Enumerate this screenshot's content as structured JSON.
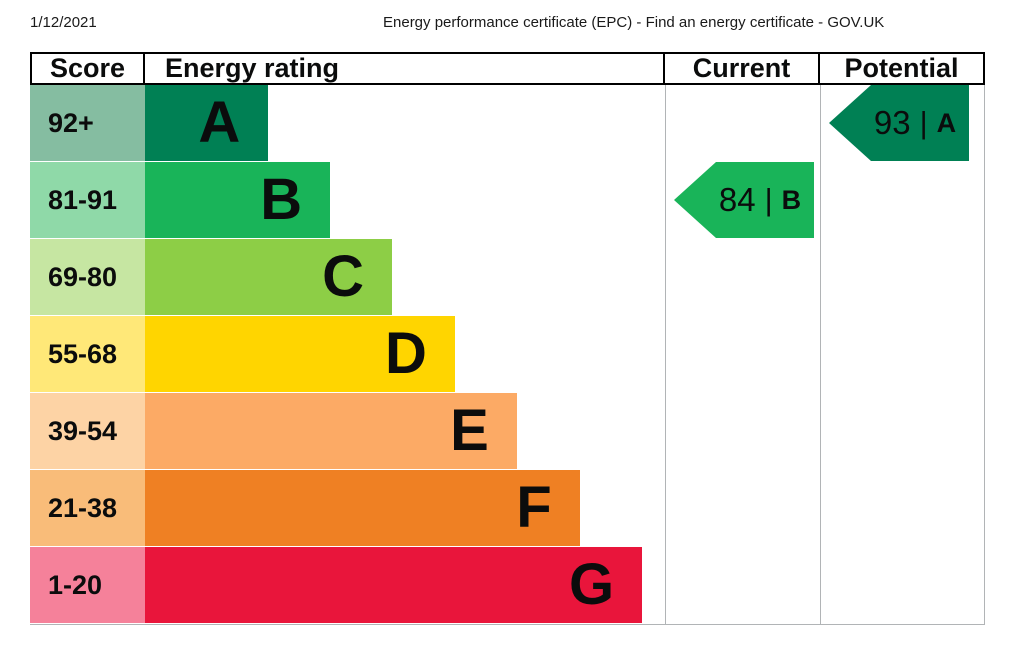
{
  "page_header": {
    "date": "1/12/2021",
    "title": "Energy performance certificate (EPC) - Find an energy certificate - GOV.UK"
  },
  "table": {
    "headers": {
      "score": "Score",
      "rating": "Energy rating",
      "current": "Current",
      "potential": "Potential"
    }
  },
  "colors": {
    "header_border": "#000000",
    "grid_border": "#b1b4b6",
    "text": "#0b0c0c"
  },
  "chart_data": {
    "type": "bar",
    "title": "Energy rating bands (EPC)",
    "categories": [
      "A",
      "B",
      "C",
      "D",
      "E",
      "F",
      "G"
    ],
    "bands": [
      {
        "letter": "A",
        "score_range": "92+",
        "bar_width_pct": 23.7,
        "bar_color": "#008054",
        "score_cell_color": "#85bda1"
      },
      {
        "letter": "B",
        "score_range": "81-91",
        "bar_width_pct": 35.6,
        "bar_color": "#19b459",
        "score_cell_color": "#8fd9a8"
      },
      {
        "letter": "C",
        "score_range": "69-80",
        "bar_width_pct": 47.5,
        "bar_color": "#8dce46",
        "score_cell_color": "#c6e6a2"
      },
      {
        "letter": "D",
        "score_range": "55-68",
        "bar_width_pct": 59.6,
        "bar_color": "#ffd500",
        "score_cell_color": "#ffe878"
      },
      {
        "letter": "E",
        "score_range": "39-54",
        "bar_width_pct": 71.5,
        "bar_color": "#fcaa65",
        "score_cell_color": "#fdd3a5"
      },
      {
        "letter": "F",
        "score_range": "21-38",
        "bar_width_pct": 83.6,
        "bar_color": "#ef8023",
        "score_cell_color": "#f9bc79"
      },
      {
        "letter": "G",
        "score_range": "1-20",
        "bar_width_pct": 95.6,
        "bar_color": "#e9153b",
        "score_cell_color": "#f5819a"
      }
    ],
    "current": {
      "value": "84",
      "separator": "|",
      "band": "B",
      "arrow_color": "#19b459"
    },
    "potential": {
      "value": "93",
      "separator": "|",
      "band": "A",
      "arrow_color": "#008054"
    }
  }
}
